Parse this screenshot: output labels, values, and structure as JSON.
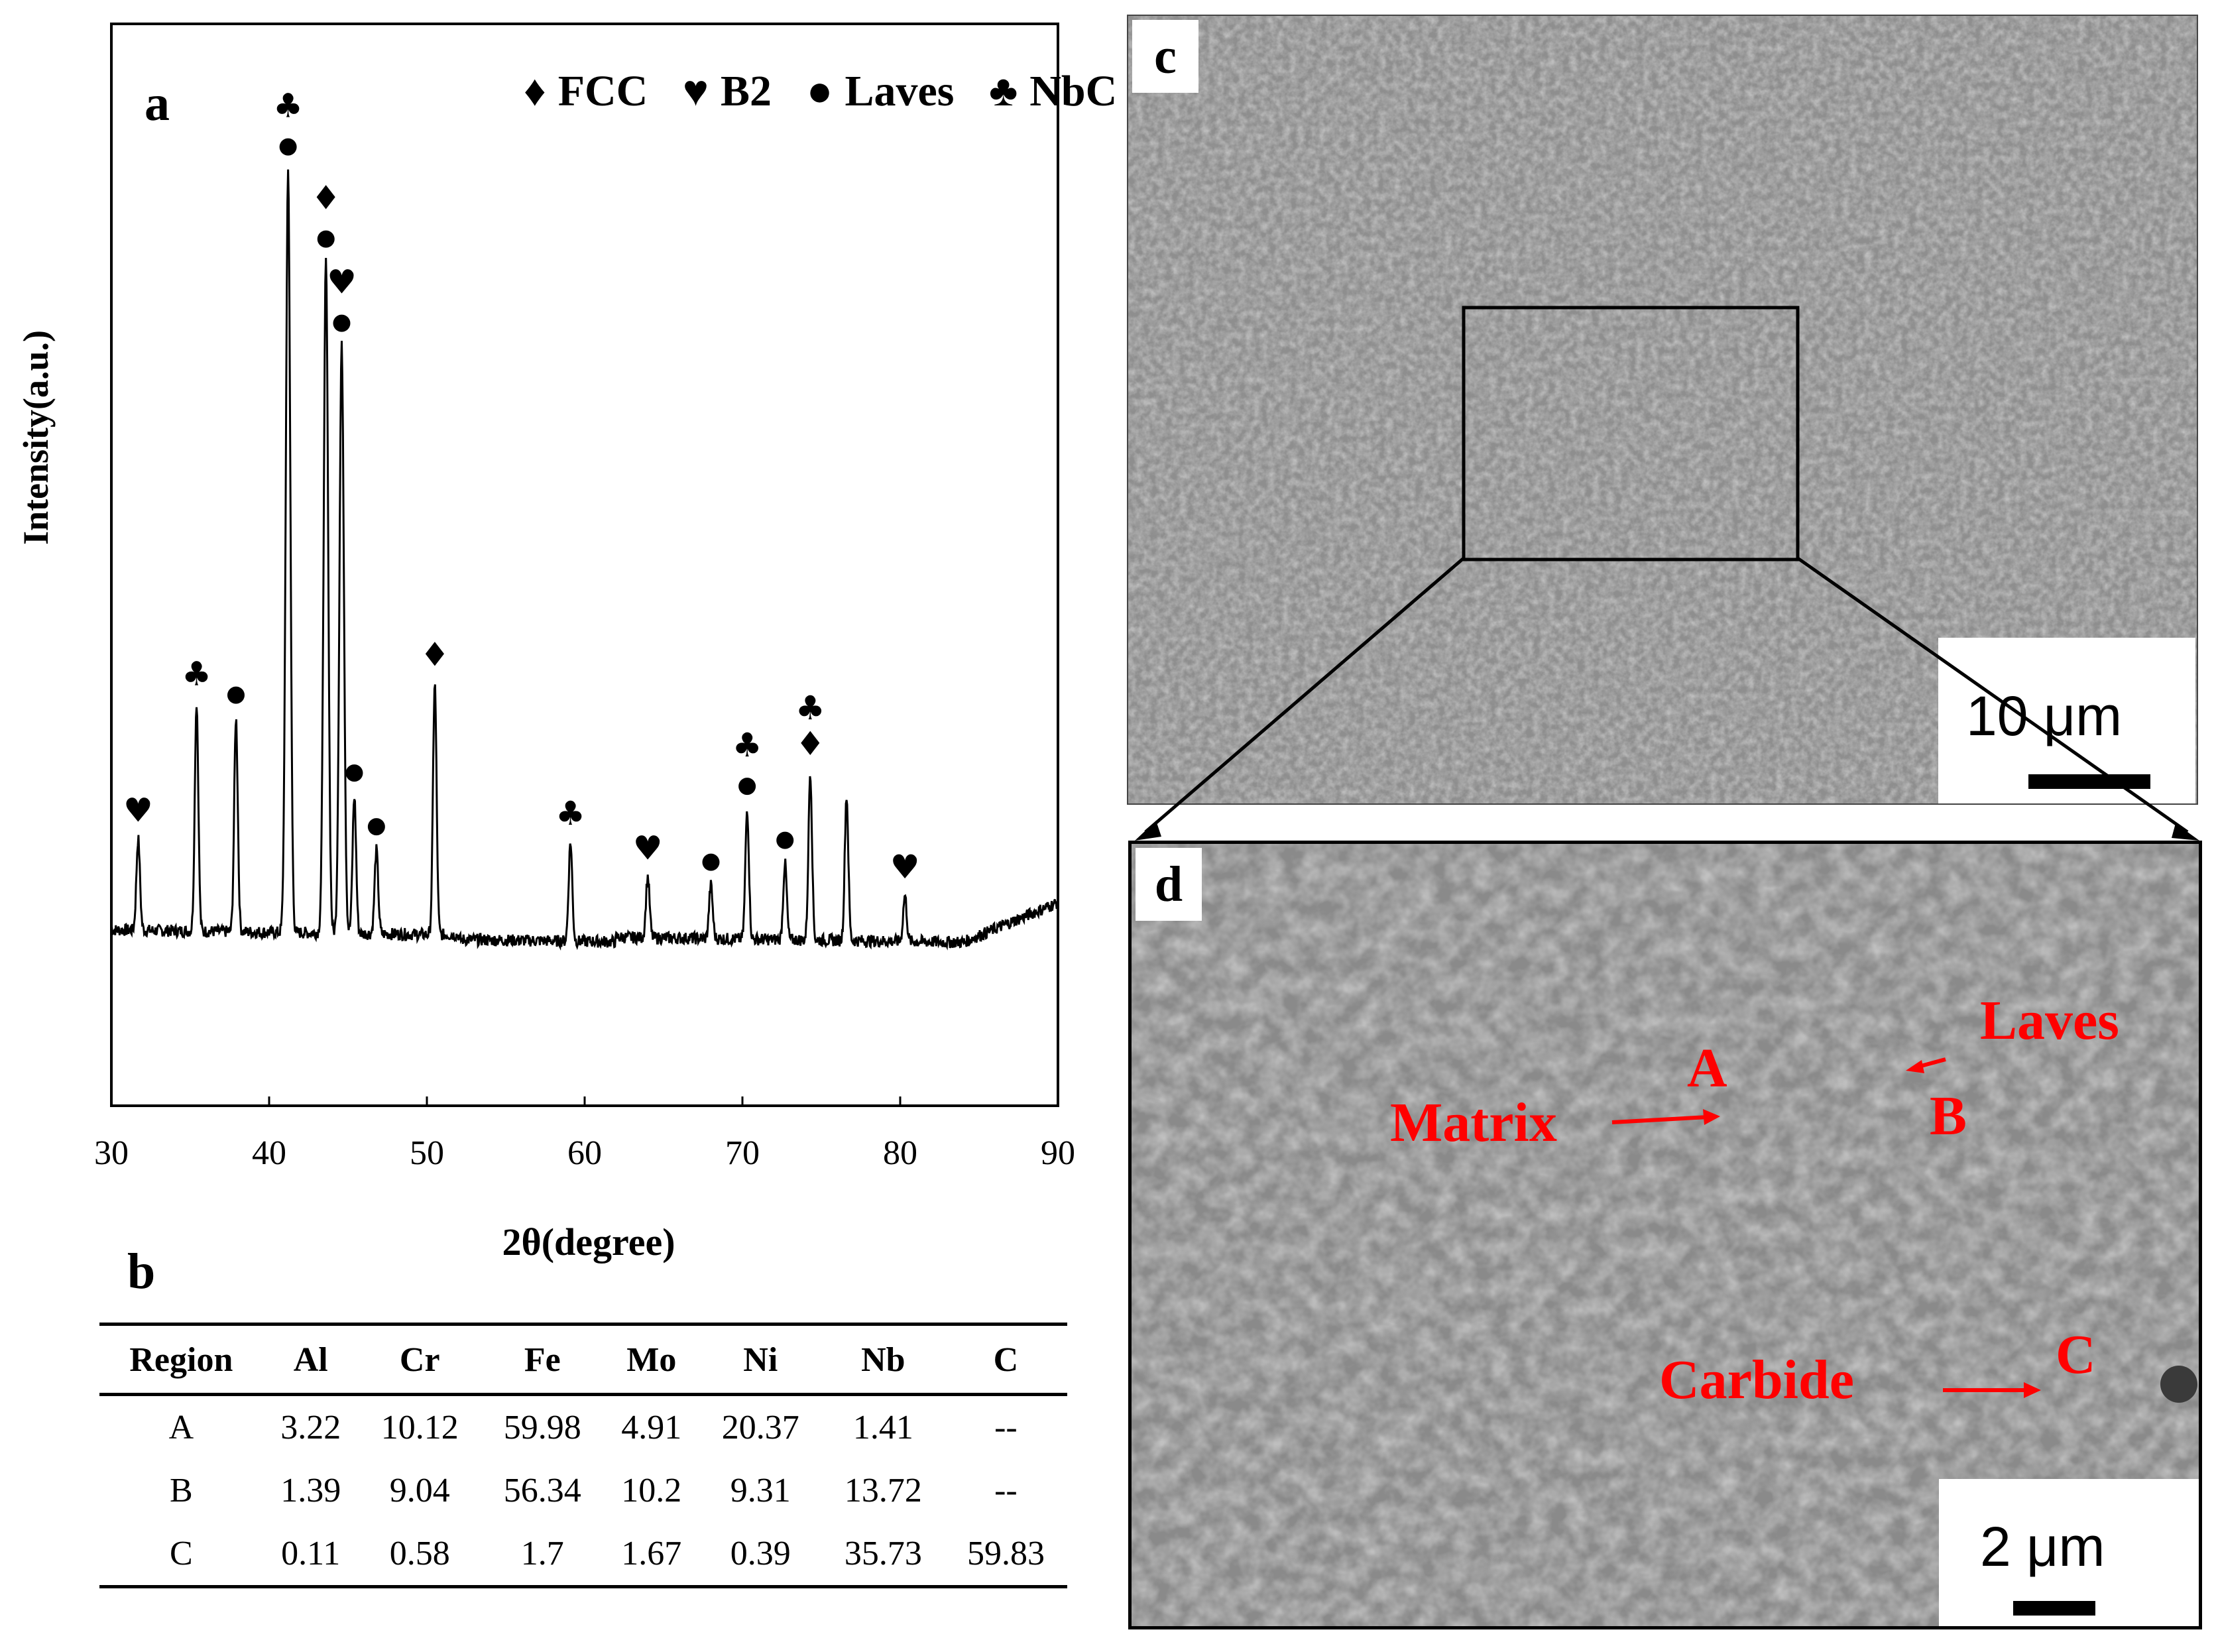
{
  "panels": {
    "a": "a",
    "b": "b",
    "c": "c",
    "d": "d"
  },
  "chart_data": {
    "type": "line",
    "title": "",
    "xlabel": "2θ(degree)",
    "ylabel": "Intensity(a.u.)",
    "xlim": [
      30,
      90
    ],
    "xticks": [
      "30",
      "40",
      "50",
      "60",
      "70",
      "80",
      "90"
    ],
    "legend": {
      "placement": "top-right",
      "entries": [
        {
          "symbol": "♦",
          "label": "FCC"
        },
        {
          "symbol": "♥",
          "label": "B2"
        },
        {
          "symbol": "●",
          "label": "Laves"
        },
        {
          "symbol": "♣",
          "label": "NbC"
        }
      ]
    },
    "peaks": [
      {
        "x": 31.7,
        "y": 12,
        "markers": [
          "♥"
        ]
      },
      {
        "x": 35.4,
        "y": 30,
        "markers": [
          "♣"
        ]
      },
      {
        "x": 37.9,
        "y": 28,
        "markers": [
          "●"
        ]
      },
      {
        "x": 41.2,
        "y": 100,
        "markers": [
          "♣",
          "●"
        ]
      },
      {
        "x": 43.6,
        "y": 88,
        "markers": [
          "♦",
          "●"
        ]
      },
      {
        "x": 44.6,
        "y": 77,
        "markers": [
          "♥",
          "●"
        ]
      },
      {
        "x": 45.4,
        "y": 18,
        "markers": [
          "●"
        ]
      },
      {
        "x": 46.8,
        "y": 11,
        "markers": [
          "●"
        ]
      },
      {
        "x": 50.5,
        "y": 33,
        "markers": [
          "♦"
        ]
      },
      {
        "x": 59.1,
        "y": 13,
        "markers": [
          "♣"
        ]
      },
      {
        "x": 64.0,
        "y": 8,
        "markers": [
          "♥"
        ]
      },
      {
        "x": 68.0,
        "y": 7,
        "markers": [
          "●"
        ]
      },
      {
        "x": 70.3,
        "y": 17,
        "markers": [
          "♣",
          "●"
        ]
      },
      {
        "x": 72.7,
        "y": 10,
        "markers": [
          "●"
        ]
      },
      {
        "x": 74.3,
        "y": 22,
        "markers": [
          "♣",
          "♦"
        ]
      },
      {
        "x": 76.6,
        "y": 19,
        "markers": []
      },
      {
        "x": 80.3,
        "y": 6,
        "markers": [
          "♥"
        ]
      }
    ]
  },
  "table": {
    "headers": [
      "Region",
      "Al",
      "Cr",
      "Fe",
      "Mo",
      "Ni",
      "Nb",
      "C"
    ],
    "rows": [
      [
        "A",
        "3.22",
        "10.12",
        "59.98",
        "4.91",
        "20.37",
        "1.41",
        "--"
      ],
      [
        "B",
        "1.39",
        "9.04",
        "56.34",
        "10.2",
        "9.31",
        "13.72",
        "--"
      ],
      [
        "C",
        "0.11",
        "0.58",
        "1.7",
        "1.67",
        "0.39",
        "35.73",
        "59.83"
      ]
    ]
  },
  "sem_c": {
    "scale": "10 μm"
  },
  "sem_d": {
    "scale": "2 μm",
    "labels": {
      "laves": "Laves",
      "a": "A",
      "matrix": "Matrix",
      "b": "B",
      "carbide": "Carbide",
      "c": "C"
    }
  },
  "colors": {
    "annotation": "#ff0000",
    "sem_background": "#8c8c8c"
  }
}
